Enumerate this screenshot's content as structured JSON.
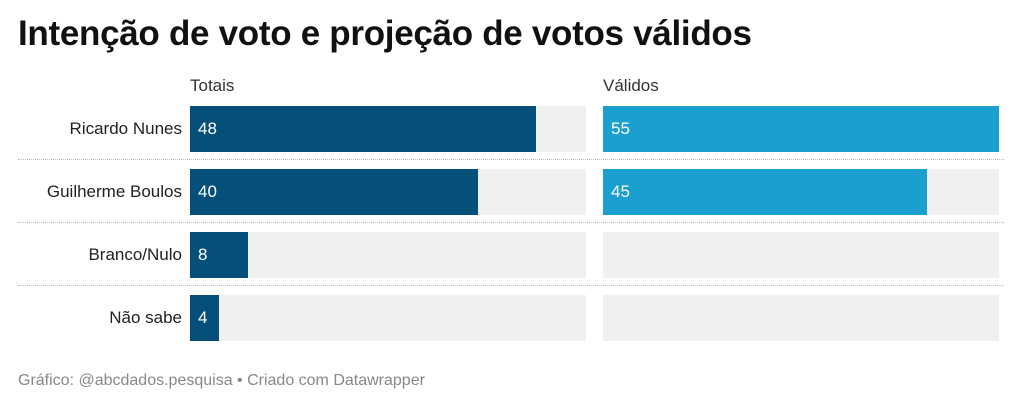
{
  "title": "Intenção de voto e projeção de votos válidos",
  "footer": "Gráfico: @abcdados.pesquisa • Criado com Datawrapper",
  "colors": {
    "totais": "#04507a",
    "validos": "#1a9fce",
    "track": "#f0f0f0"
  },
  "chart_data": {
    "type": "bar",
    "orientation": "horizontal",
    "categories": [
      "Ricardo Nunes",
      "Guilherme Boulos",
      "Branco/Nulo",
      "Não sabe"
    ],
    "series": [
      {
        "name": "Totais",
        "values": [
          48,
          40,
          8,
          4
        ]
      },
      {
        "name": "Válidos",
        "values": [
          55,
          45,
          null,
          null
        ]
      }
    ],
    "xlim": [
      0,
      55
    ],
    "grid": false
  }
}
